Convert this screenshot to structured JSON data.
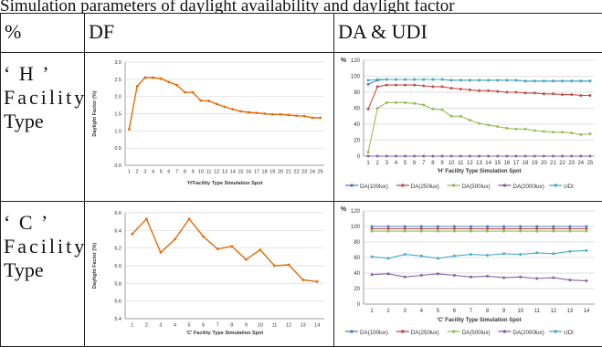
{
  "top_caption": "Simulation parameters of daylight availability and daylight factor",
  "table": {
    "headers": [
      "%",
      "DF",
      "DA & UDI"
    ],
    "rows": [
      {
        "label_line1": "‘ H ’",
        "label_line2": "Facility",
        "label_line3": "Type"
      },
      {
        "label_line1": "‘ C ’",
        "label_line2": "Facility",
        "label_line3": "Type"
      }
    ]
  },
  "colors": {
    "df": "#e36c0a",
    "da100": "#4f81bd",
    "da250": "#c0504d",
    "da500": "#9bbb59",
    "da2000": "#8064a2",
    "udi": "#4bacc6"
  },
  "chart_data": [
    {
      "type": "line",
      "id": "h_df",
      "title": "",
      "xlabel": "'H'Facility Type Simulation Spot",
      "ylabel": "Daylight Factor (%)",
      "ylim": [
        0,
        3.0
      ],
      "yticks": [
        "0.0",
        "0.5",
        "1.0",
        "1.5",
        "2.0",
        "2.5",
        "3.0"
      ],
      "x": [
        1,
        2,
        3,
        4,
        5,
        6,
        7,
        8,
        9,
        10,
        11,
        12,
        13,
        14,
        15,
        16,
        17,
        18,
        19,
        20,
        21,
        22,
        23,
        24,
        25
      ],
      "series": [
        {
          "values": [
            1.05,
            2.3,
            2.55,
            2.55,
            2.52,
            2.42,
            2.33,
            2.12,
            2.12,
            1.88,
            1.87,
            1.78,
            1.7,
            1.63,
            1.57,
            1.54,
            1.52,
            1.5,
            1.48,
            1.48,
            1.46,
            1.44,
            1.43,
            1.38,
            1.38
          ]
        }
      ]
    },
    {
      "type": "line",
      "id": "h_da",
      "title": "",
      "xlabel": "'H' Facility Type Simulation Spot",
      "ylabel": "%",
      "ylim": [
        0,
        120
      ],
      "yticks": [
        "0",
        "20",
        "40",
        "60",
        "80",
        "100",
        "120"
      ],
      "x": [
        1,
        2,
        3,
        4,
        5,
        6,
        7,
        8,
        9,
        10,
        11,
        12,
        13,
        14,
        15,
        16,
        17,
        18,
        19,
        20,
        21,
        22,
        23,
        24,
        25
      ],
      "legend": [
        "DA(100lux)",
        "DA(250lux)",
        "DA(500lux)",
        "DA(2000lux)",
        "UDI"
      ],
      "legend_position": "bottom",
      "series": [
        {
          "name": "DA(100lux)",
          "values": [
            90,
            95,
            96,
            96,
            96,
            96,
            96,
            96,
            96,
            95,
            95,
            95,
            95,
            95,
            95,
            95,
            95,
            94,
            94,
            94,
            94,
            94,
            94,
            94,
            94
          ]
        },
        {
          "name": "DA(250lux)",
          "values": [
            59,
            87,
            89,
            89,
            89,
            89,
            88,
            87,
            87,
            85,
            84,
            83,
            82,
            82,
            81,
            80,
            80,
            79,
            79,
            78,
            78,
            77,
            77,
            76,
            76
          ]
        },
        {
          "name": "DA(500lux)",
          "values": [
            5,
            60,
            67,
            67,
            67,
            66,
            64,
            59,
            58,
            50,
            50,
            45,
            41,
            39,
            37,
            35,
            34,
            34,
            32,
            31,
            30,
            30,
            29,
            27,
            28
          ]
        },
        {
          "name": "DA(2000lux)",
          "values": [
            0,
            0,
            0,
            0,
            0,
            0,
            0,
            0,
            0,
            0,
            0,
            0,
            0,
            0,
            0,
            0,
            0,
            0,
            0,
            0,
            0,
            0,
            0,
            0,
            0
          ]
        },
        {
          "name": "UDI",
          "values": [
            95,
            96,
            96,
            96,
            96,
            96,
            96,
            96,
            96,
            95,
            95,
            95,
            95,
            95,
            95,
            95,
            95,
            94,
            94,
            94,
            94,
            94,
            94,
            94,
            94
          ]
        }
      ]
    },
    {
      "type": "line",
      "id": "c_df",
      "title": "",
      "xlabel": "'C' Facility Type Simulation Spot",
      "ylabel": "Daylight Factor (%)",
      "ylim": [
        5.4,
        6.6
      ],
      "yticks": [
        "5.4",
        "5.6",
        "5.8",
        "6.0",
        "6.2",
        "6.4",
        "6.6"
      ],
      "x": [
        1,
        2,
        3,
        4,
        5,
        6,
        7,
        8,
        9,
        10,
        11,
        12,
        13,
        14
      ],
      "series": [
        {
          "values": [
            6.36,
            6.53,
            6.15,
            6.3,
            6.53,
            6.33,
            6.19,
            6.22,
            6.07,
            6.18,
            6.0,
            6.01,
            5.84,
            5.82
          ]
        }
      ]
    },
    {
      "type": "line",
      "id": "c_da",
      "title": "",
      "xlabel": "'C' Facility Type Simulation Spot",
      "ylabel": "%",
      "ylim": [
        0,
        120
      ],
      "yticks": [
        "0",
        "20",
        "40",
        "60",
        "80",
        "100",
        "120"
      ],
      "x": [
        1,
        2,
        3,
        4,
        5,
        6,
        7,
        8,
        9,
        10,
        11,
        12,
        13,
        14
      ],
      "legend": [
        "DA(100lux)",
        "DA(250lux)",
        "DA(500lux)",
        "DA(2000lux)",
        "UDI"
      ],
      "legend_position": "bottom",
      "series": [
        {
          "name": "DA(100lux)",
          "values": [
            100,
            100,
            100,
            100,
            100,
            100,
            100,
            100,
            100,
            100,
            100,
            100,
            100,
            100
          ]
        },
        {
          "name": "DA(250lux)",
          "values": [
            97,
            97,
            97,
            97,
            97,
            97,
            97,
            97,
            97,
            97,
            97,
            97,
            97,
            97
          ]
        },
        {
          "name": "DA(500lux)",
          "values": [
            94,
            94,
            94,
            94,
            94,
            94,
            94,
            94,
            94,
            94,
            94,
            94,
            94,
            94
          ]
        },
        {
          "name": "DA(2000lux)",
          "values": [
            38,
            39,
            35,
            37,
            39,
            37,
            35,
            36,
            34,
            35,
            33,
            34,
            31,
            30
          ]
        },
        {
          "name": "UDI",
          "values": [
            61,
            59,
            64,
            62,
            59,
            62,
            64,
            63,
            65,
            64,
            66,
            65,
            68,
            69
          ]
        }
      ]
    }
  ]
}
